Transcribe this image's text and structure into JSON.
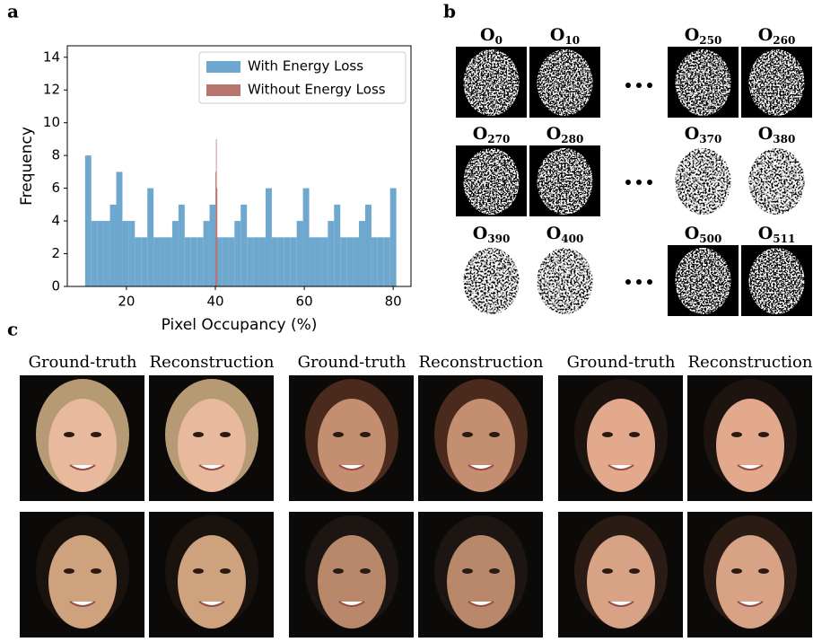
{
  "panel_labels": [
    "a",
    "b",
    "c"
  ],
  "chart_data": {
    "type": "histogram",
    "x_label": "Pixel Occupancy (%)",
    "y_label": "Frequency",
    "xlim": [
      6.7,
      84.0
    ],
    "ylim": [
      0,
      14.7
    ],
    "xticks": [
      20,
      40,
      60,
      80
    ],
    "yticks": [
      0,
      2,
      4,
      6,
      8,
      10,
      12,
      14
    ],
    "legend": "upper right",
    "series": [
      {
        "name": "With Energy Loss",
        "color": "#6ea8ce",
        "bins": [
          10.7,
          12.1,
          13.5,
          14.9,
          16.3,
          17.7,
          19.1,
          20.5,
          21.9,
          23.3,
          24.7,
          26.1,
          27.5,
          28.9,
          30.3,
          31.7,
          33.1,
          34.5,
          35.9,
          37.3,
          38.7,
          40.1,
          41.5,
          42.9,
          44.3,
          45.7,
          47.1,
          48.5,
          49.9,
          51.3,
          52.7,
          54.1,
          55.5,
          56.9,
          58.3,
          59.7,
          61.1,
          62.5,
          63.9,
          65.3,
          66.7,
          68.1,
          69.5,
          70.9,
          72.3,
          73.7,
          75.1,
          76.5,
          77.9,
          79.3,
          80.7
        ],
        "values": [
          8,
          4,
          4,
          4,
          5,
          7,
          4,
          4,
          3,
          3,
          6,
          3,
          3,
          3,
          4,
          5,
          3,
          3,
          3,
          4,
          5,
          3,
          3,
          3,
          4,
          5,
          3,
          3,
          3,
          6,
          3,
          3,
          3,
          3,
          4,
          6,
          3,
          3,
          3,
          4,
          5,
          3,
          3,
          3,
          4,
          5,
          3,
          3,
          3,
          6
        ]
      },
      {
        "name": "Without Energy Loss",
        "color": "#b87470",
        "bins": [
          40.0,
          40.15,
          40.3,
          40.45
        ],
        "values": [
          7,
          9,
          6
        ]
      }
    ]
  },
  "operator_maps": {
    "symbol": "O",
    "rows": [
      [
        "0",
        "10",
        "250",
        "260"
      ],
      [
        "270",
        "280",
        "370",
        "380"
      ],
      [
        "390",
        "400",
        "500",
        "511"
      ]
    ]
  },
  "reconstructions": {
    "columns": [
      "Ground-truth",
      "Reconstruction"
    ]
  }
}
